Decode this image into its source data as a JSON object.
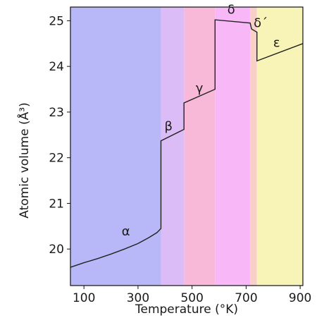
{
  "chart_data": {
    "type": "line",
    "title": "",
    "xlabel": "Temperature (°K)",
    "ylabel": "Atomic volume (Å³)",
    "xlim": [
      50,
      910
    ],
    "ylim": [
      19.2,
      25.3
    ],
    "xticks": [
      100,
      300,
      500,
      700,
      900
    ],
    "yticks": [
      20,
      21,
      22,
      23,
      24,
      25
    ],
    "grid": false,
    "phase_bands": [
      {
        "label": "α",
        "from": 50,
        "to": 385,
        "color": "#b8b8f8"
      },
      {
        "label": "β",
        "from": 385,
        "to": 470,
        "color": "#dcbcf6"
      },
      {
        "label": "γ",
        "from": 470,
        "to": 585,
        "color": "#f8b8d8"
      },
      {
        "label": "δ",
        "from": 585,
        "to": 715,
        "color": "#f8b8f8"
      },
      {
        "label": "δ′",
        "from": 715,
        "to": 740,
        "color": "#f8d0c8"
      },
      {
        "label": "ε",
        "from": 740,
        "to": 910,
        "color": "#f8f4b8"
      }
    ],
    "series": [
      {
        "points": [
          [
            50,
            19.6
          ],
          [
            100,
            19.7
          ],
          [
            150,
            19.79
          ],
          [
            200,
            19.89
          ],
          [
            250,
            20.0
          ],
          [
            300,
            20.12
          ],
          [
            340,
            20.25
          ],
          [
            370,
            20.36
          ],
          [
            385,
            20.45
          ],
          [
            385,
            22.37
          ],
          [
            470,
            22.62
          ],
          [
            470,
            23.2
          ],
          [
            585,
            23.5
          ],
          [
            585,
            25.02
          ],
          [
            715,
            24.95
          ],
          [
            720,
            24.82
          ],
          [
            740,
            24.75
          ],
          [
            740,
            24.12
          ],
          [
            910,
            24.5
          ]
        ],
        "color": "#222222"
      }
    ],
    "annotations": [
      {
        "text": "α",
        "x": 255,
        "y": 20.3
      },
      {
        "text": "β",
        "x": 413,
        "y": 22.6
      },
      {
        "text": "γ",
        "x": 527,
        "y": 23.43
      },
      {
        "text": "δ",
        "x": 645,
        "y": 25.15
      },
      {
        "text": "δ´",
        "x": 754,
        "y": 24.86
      },
      {
        "text": "ε",
        "x": 813,
        "y": 24.43
      }
    ]
  }
}
